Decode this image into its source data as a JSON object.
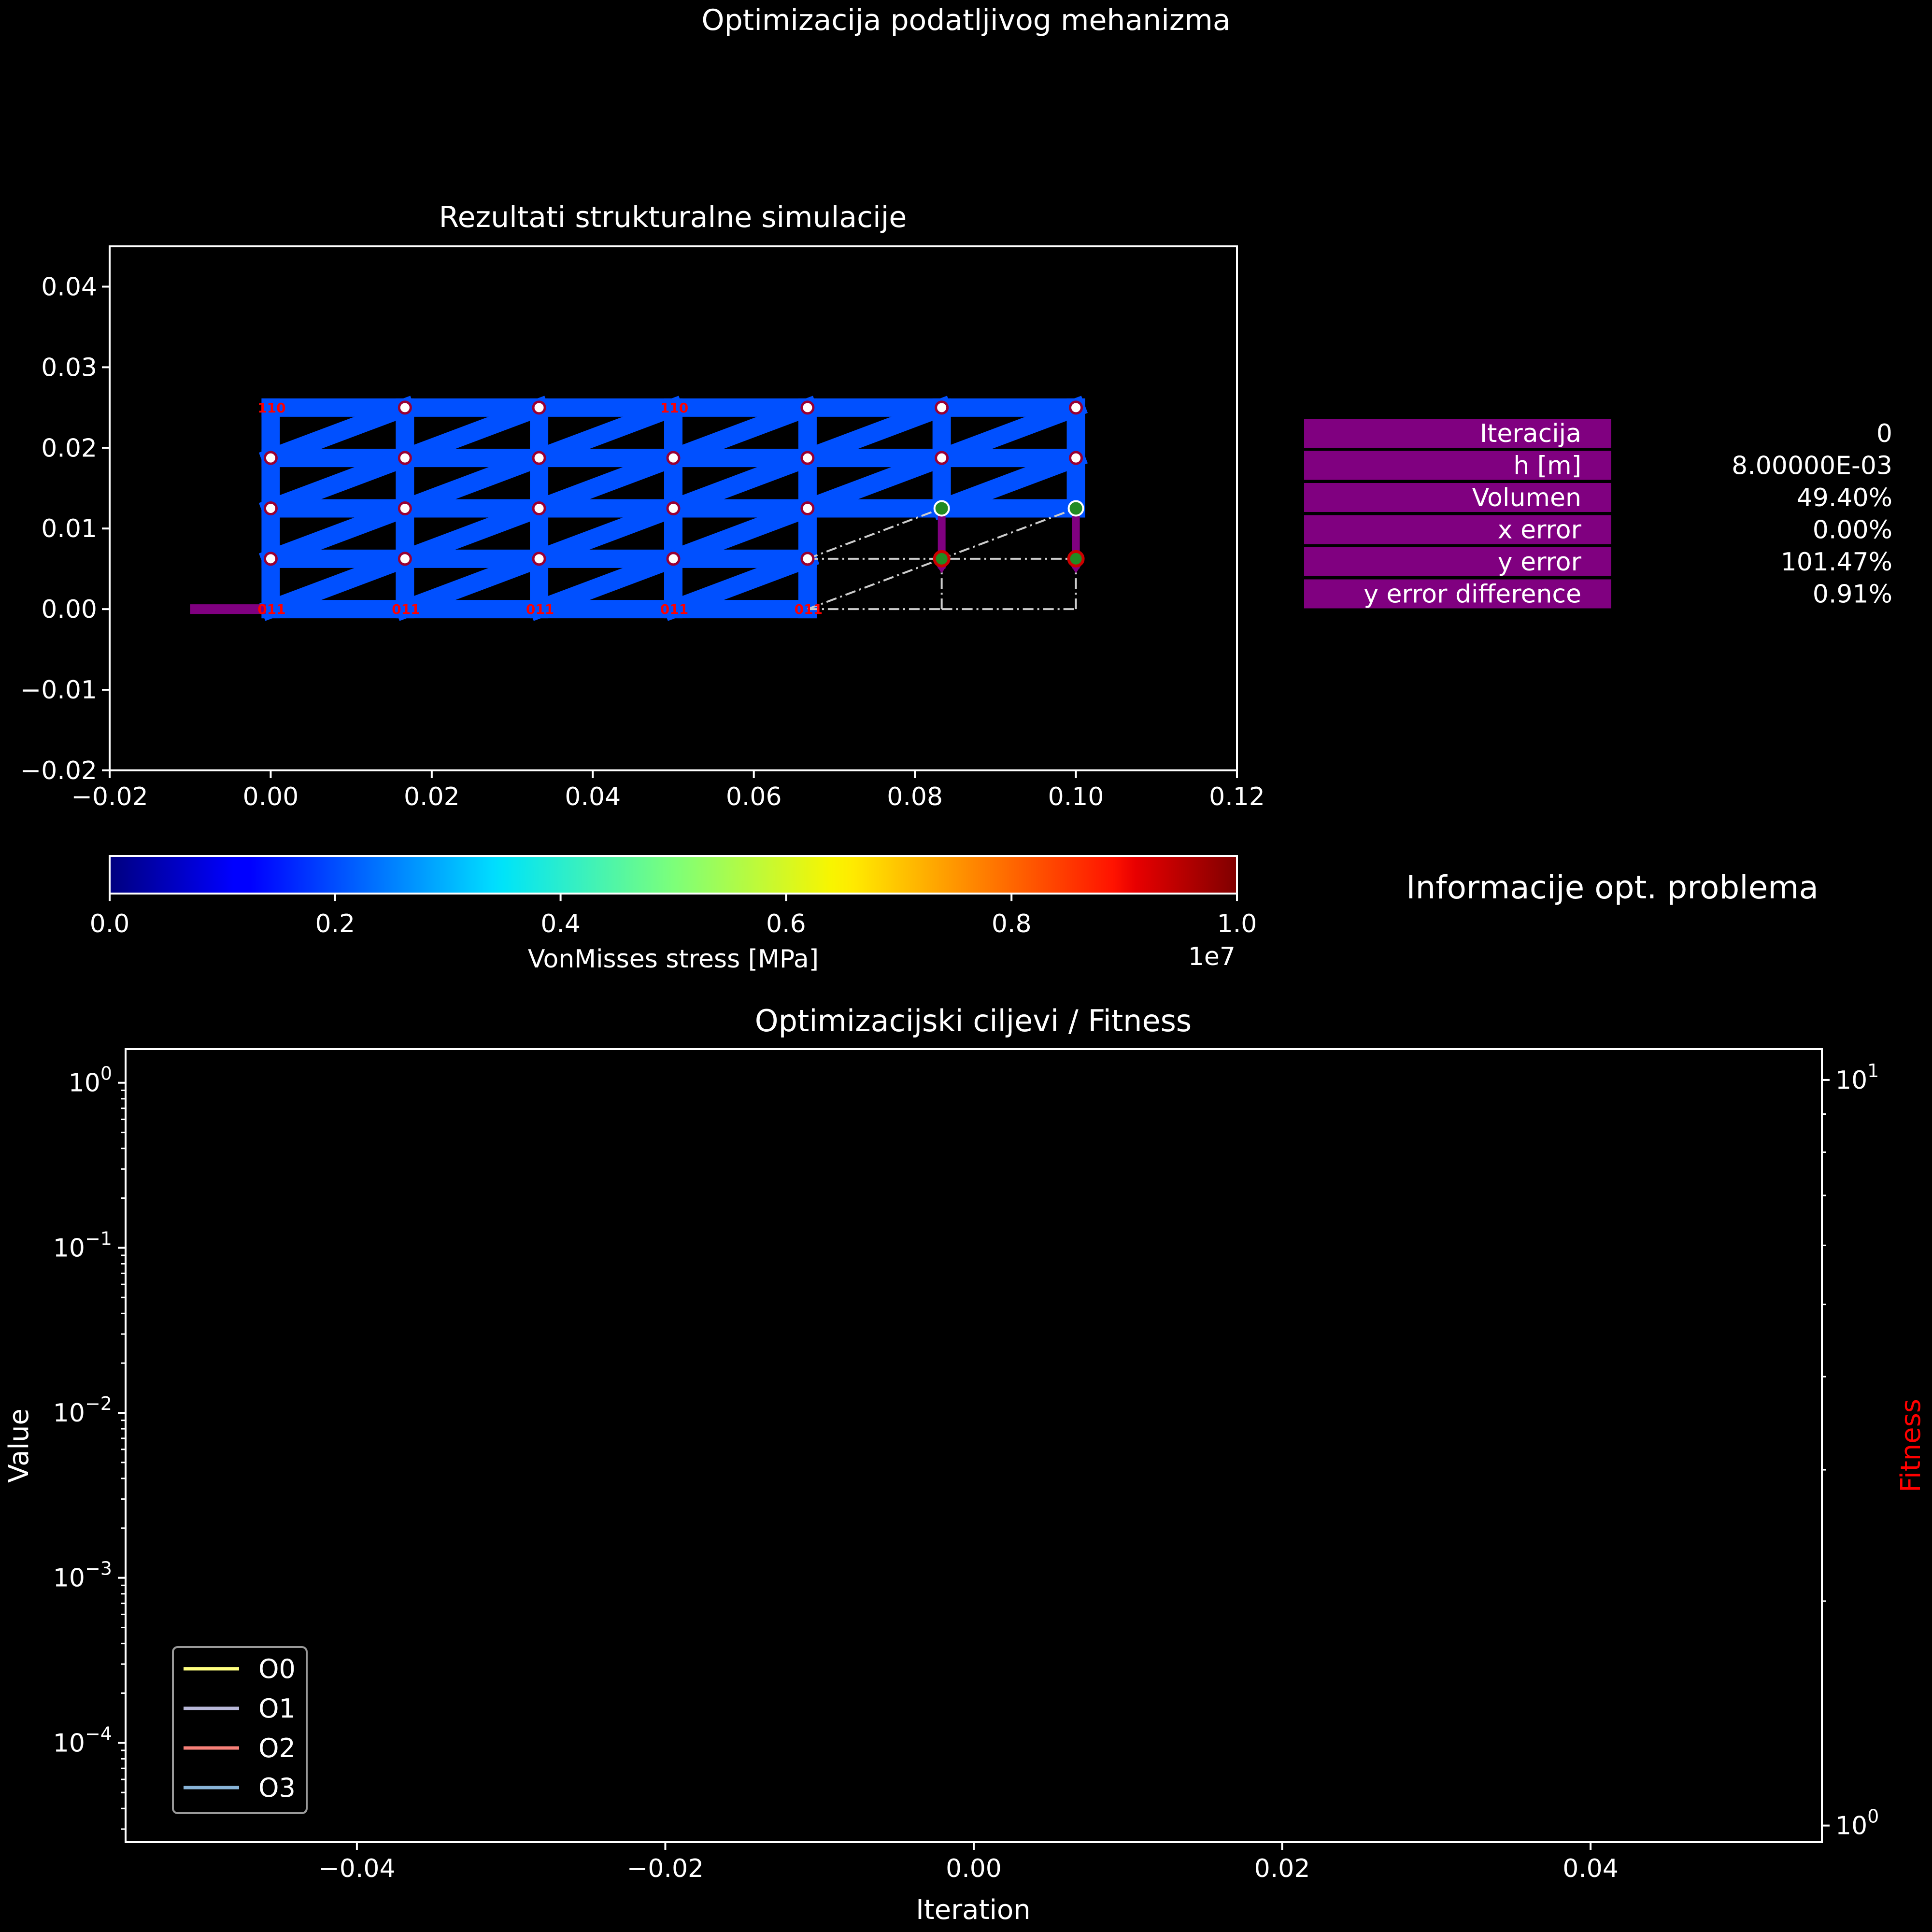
{
  "figure_title": "Optimizacija podatljivog mehanizma",
  "colors": {
    "background": "#000000",
    "foreground": "#ffffff",
    "structure": "#0050ff",
    "node_fill": "#ffffff",
    "node_edge": "#990033",
    "support": "#ff0000",
    "target_start": "#228b22",
    "target_end": "#cc0000",
    "arrow": "#800080",
    "path_line": "#cccccc",
    "info_box": "#800080",
    "fitness_label": "#ff0000"
  },
  "chart_data": [
    {
      "type": "scatter",
      "title": "Rezultati strukturalne simulacije",
      "xlim": [
        -0.02,
        0.12
      ],
      "ylim": [
        -0.02,
        0.045
      ],
      "xticks": [
        -0.02,
        0.0,
        0.02,
        0.04,
        0.06,
        0.08,
        0.1,
        0.12
      ],
      "xtick_labels": [
        "−0.02",
        "0.00",
        "0.02",
        "0.04",
        "0.06",
        "0.08",
        "0.10",
        "0.12"
      ],
      "yticks": [
        -0.02,
        -0.01,
        0.0,
        0.01,
        0.02,
        0.03,
        0.04
      ],
      "ytick_labels": [
        "−0.02",
        "−0.01",
        "0.00",
        "0.01",
        "0.02",
        "0.03",
        "0.04"
      ],
      "grid": false,
      "structure": {
        "column_x": [
          0.0,
          0.01667,
          0.03333,
          0.05,
          0.06667,
          0.08333,
          0.1
        ],
        "row_y": [
          0.0,
          0.00625,
          0.0125,
          0.01875,
          0.025
        ],
        "full_rows_to_column": 4,
        "top_rows_to_column": 6
      },
      "supports_bottom": {
        "x": [
          0.0,
          0.01667,
          0.03333,
          0.05,
          0.06667
        ],
        "y": 0.0,
        "label": "011"
      },
      "supports_top": {
        "x": [
          0.0,
          0.05
        ],
        "y": 0.025,
        "label": "110"
      },
      "target_nodes": [
        {
          "x": 0.08333,
          "y_start": 0.0125,
          "y_end": 0.00625
        },
        {
          "x": 0.1,
          "y_start": 0.0125,
          "y_end": 0.00625
        }
      ],
      "input_force": {
        "x_from": -0.01,
        "x_to": 0.0,
        "y": 0.0
      }
    },
    {
      "type": "colorbar",
      "label": "VonMisses stress [MPa]",
      "range": [
        0.0,
        1.0
      ],
      "ticks": [
        0.0,
        0.2,
        0.4,
        0.6,
        0.8,
        1.0
      ],
      "tick_labels": [
        "0.0",
        "0.2",
        "0.4",
        "0.6",
        "0.8",
        "1.0"
      ],
      "offset_text": "1e7",
      "colormap": "jet"
    },
    {
      "type": "table",
      "title": "Informacije opt. problema",
      "rows": [
        {
          "label": "Iteracija",
          "value": "0"
        },
        {
          "label": "h [m]",
          "value": "8.00000E-03"
        },
        {
          "label": "Volumen",
          "value": "49.40%"
        },
        {
          "label": "x error",
          "value": "0.00%"
        },
        {
          "label": "y error",
          "value": "101.47%"
        },
        {
          "label": "y error difference",
          "value": "0.91%"
        }
      ]
    },
    {
      "type": "line",
      "title": "Optimizacijski ciljevi / Fitness",
      "xlabel": "Iteration",
      "ylabel": "Value",
      "ylabel_right": "Fitness",
      "xlim": [
        -0.055,
        0.055
      ],
      "xticks": [
        -0.04,
        -0.02,
        0.0,
        0.02,
        0.04
      ],
      "xtick_labels": [
        "−0.04",
        "−0.02",
        "0.00",
        "0.02",
        "0.04"
      ],
      "yscale": "log",
      "ylim": [
        2.5e-05,
        1.6
      ],
      "ytick_exponents": [
        "0",
        "−1",
        "−2",
        "−3",
        "−4"
      ],
      "yscale_right": "log",
      "ylim_right": [
        0.95,
        11.0
      ],
      "yticks_right_exponents": [
        "1",
        "0"
      ],
      "legend_position": "lower-left",
      "series": [
        {
          "name": "O0",
          "color": "#ffff80",
          "values": []
        },
        {
          "name": "O1",
          "color": "#b8b8d8",
          "values": []
        },
        {
          "name": "O2",
          "color": "#f88078",
          "values": []
        },
        {
          "name": "O3",
          "color": "#88b4d8",
          "values": []
        }
      ]
    }
  ]
}
